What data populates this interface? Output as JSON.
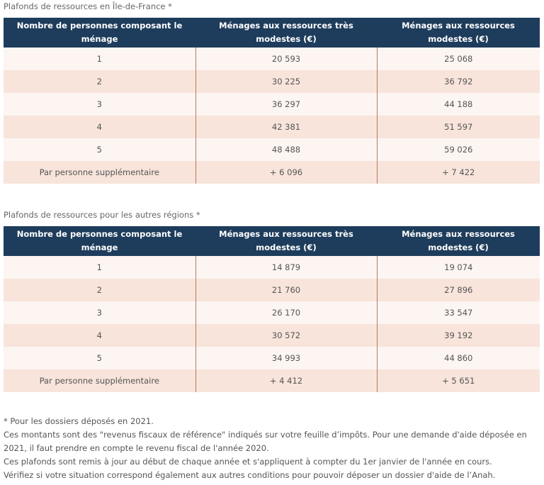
{
  "idf": {
    "caption": "Plafonds de ressources en Île-de-France *",
    "headers": [
      "Nombre de personnes composant le ménage",
      "Ménages aux ressources très modestes (€)",
      "Ménages aux ressources modestes (€)"
    ],
    "rows": [
      [
        "1",
        "20 593",
        "25 068"
      ],
      [
        "2",
        "30 225",
        "36 792"
      ],
      [
        "3",
        "36 297",
        "44 188"
      ],
      [
        "4",
        "42 381",
        "51 597"
      ],
      [
        "5",
        "48 488",
        "59 026"
      ],
      [
        "Par personne supplémentaire",
        "+ 6 096",
        "+ 7 422"
      ]
    ]
  },
  "autres": {
    "caption": "Plafonds de ressources pour les autres régions *",
    "headers": [
      "Nombre de personnes composant le ménage",
      "Ménages aux ressources très modestes (€)",
      "Ménages aux ressources modestes (€)"
    ],
    "rows": [
      [
        "1",
        "14 879",
        "19 074"
      ],
      [
        "2",
        "21 760",
        "27 896"
      ],
      [
        "3",
        "26 170",
        "33 547"
      ],
      [
        "4",
        "30 572",
        "39 192"
      ],
      [
        "5",
        "34 993",
        "44 860"
      ],
      [
        "Par personne supplémentaire",
        "+ 4 412",
        "+ 5 651"
      ]
    ]
  },
  "notes": {
    "asterisk": "* Pour les dossiers déposés en 2021.",
    "revenus": "Ces montants sont des \"revenus fiscaux de référence\" indiqués sur votre feuille d’impôts. Pour une demande d'aide déposée en 2021, il faut prendre en compte le revenu fiscal de l'année 2020.",
    "mise_a_jour": "Ces plafonds sont remis à jour au début de chaque année et s'appliquent à compter du 1er janvier de l'année en cours.",
    "conditions": "Vérifiez si votre situation correspond également aux autres conditions pour pouvoir déposer un dossier d'aide de l’Anah."
  }
}
